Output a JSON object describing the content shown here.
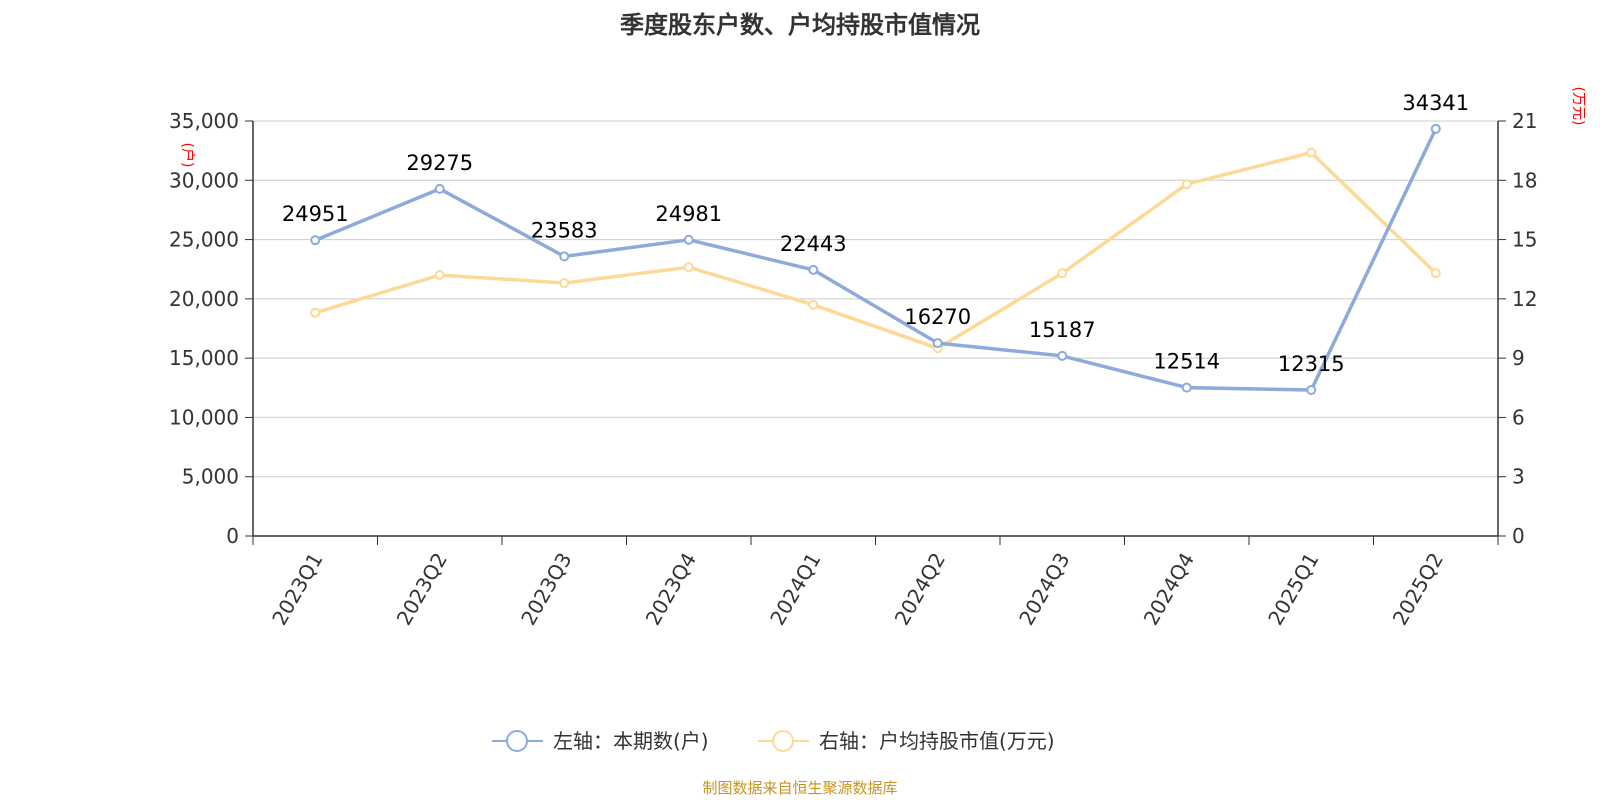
{
  "chart_data": {
    "type": "line",
    "title": "季度股东户数、户均持股市值情况",
    "categories": [
      "2023Q1",
      "2023Q2",
      "2023Q3",
      "2023Q4",
      "2024Q1",
      "2024Q2",
      "2024Q3",
      "2024Q4",
      "2025Q1",
      "2025Q2"
    ],
    "left_axis": {
      "unit": "(户)",
      "range": [
        0,
        35000
      ],
      "ticks": [
        "0",
        "5,000",
        "10,000",
        "15,000",
        "20,000",
        "25,000",
        "30,000",
        "35,000"
      ]
    },
    "right_axis": {
      "unit": "(万元)",
      "range": [
        0,
        21
      ],
      "ticks": [
        "0",
        "3",
        "6",
        "9",
        "12",
        "15",
        "18",
        "21"
      ]
    },
    "series": [
      {
        "name": "左轴：本期数(户)",
        "axis": "left",
        "color": "#8eaadb",
        "values": [
          24951,
          29275,
          23583,
          24981,
          22443,
          16270,
          15187,
          12514,
          12315,
          34341
        ],
        "labels": [
          "24951",
          "29275",
          "23583",
          "24981",
          "22443",
          "16270",
          "15187",
          "12514",
          "12315",
          "34341"
        ]
      },
      {
        "name": "右轴：户均持股市值(万元)",
        "axis": "right",
        "color": "#fdd996",
        "values": [
          11.3,
          13.2,
          12.8,
          13.6,
          11.7,
          9.5,
          13.3,
          17.8,
          19.4,
          13.3
        ]
      }
    ],
    "grid": true,
    "legend": "bottom-center",
    "source": "制图数据来自恒生聚源数据库",
    "colors": {
      "grid": "#cccccc",
      "axis": "#333333",
      "unit": "#ff0000",
      "source": "#c8941f"
    }
  }
}
